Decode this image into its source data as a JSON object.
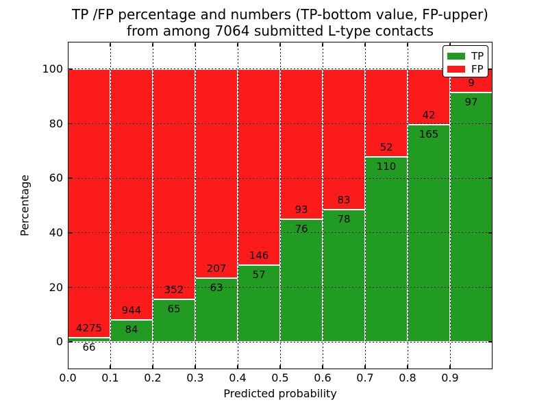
{
  "figure": {
    "title_line1": "TP /FP percentage and numbers (TP-bottom value, FP-upper)",
    "title_line2": "from among 7064 submitted L-type contacts"
  },
  "chart_data": {
    "type": "bar",
    "variant": "stacked-percent",
    "title": "TP /FP percentage and numbers (TP-bottom value, FP-upper) from among 7064 submitted L-type contacts",
    "xlabel": "Predicted probability",
    "ylabel": "Percentage",
    "total_submitted_contacts": 7064,
    "categories": [
      "0.0-0.1",
      "0.1-0.2",
      "0.2-0.3",
      "0.3-0.4",
      "0.4-0.5",
      "0.5-0.6",
      "0.6-0.7",
      "0.7-0.8",
      "0.8-0.9",
      "0.9-1.0"
    ],
    "series": [
      {
        "name": "TP",
        "color": "#229b22",
        "counts": [
          66,
          84,
          65,
          63,
          57,
          76,
          78,
          110,
          165,
          97
        ]
      },
      {
        "name": "FP",
        "color": "#fb1b1b",
        "counts": [
          4275,
          944,
          352,
          207,
          146,
          93,
          83,
          52,
          42,
          9
        ]
      }
    ],
    "tp_percent": [
      1.52,
      8.17,
      15.59,
      23.33,
      28.08,
      44.97,
      48.45,
      67.9,
      79.71,
      91.51
    ],
    "x_tick_labels": [
      "0.0",
      "0.1",
      "0.2",
      "0.3",
      "0.4",
      "0.5",
      "0.6",
      "0.7",
      "0.8",
      "0.9"
    ],
    "y_ticks": [
      0,
      20,
      40,
      60,
      80,
      100
    ],
    "y_tick_labels": [
      "0",
      "20",
      "40",
      "60",
      "80",
      "100"
    ],
    "xlim": [
      0.0,
      1.0
    ],
    "ylim": [
      -10,
      110
    ],
    "grid": {
      "linestyle": "dotted",
      "color": "#000000",
      "drawn_above_bars": true
    },
    "bar_edge_color": "#ffffff",
    "legend": {
      "position": "upper right",
      "entries": [
        {
          "label": "TP",
          "color": "#229b22"
        },
        {
          "label": "FP",
          "color": "#fb1b1b"
        }
      ]
    },
    "label_rule": "FP count printed above TP/FP boundary, TP count printed below"
  }
}
